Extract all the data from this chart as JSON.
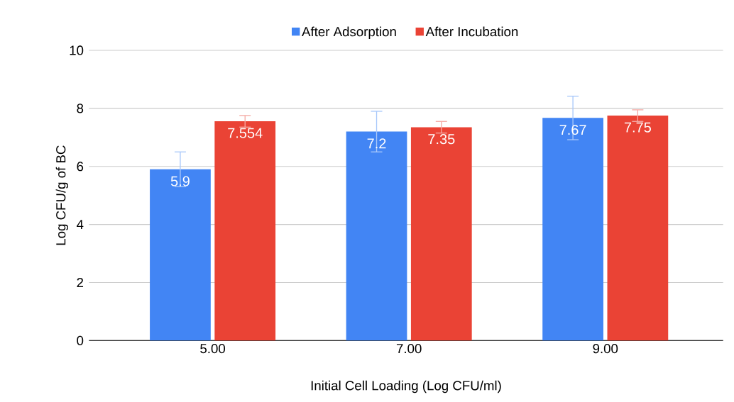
{
  "chart_data": {
    "type": "bar",
    "xlabel": "Initial Cell Loading (Log CFU/ml)",
    "ylabel": "Log CFU/g of BC",
    "categories": [
      "5.00",
      "7.00",
      "9.00"
    ],
    "series": [
      {
        "name": "After Adsorption",
        "color": "#4285f4",
        "values": [
          5.9,
          7.2,
          7.67
        ],
        "errors": [
          0.6,
          0.7,
          0.75
        ]
      },
      {
        "name": "After Incubation",
        "color": "#ea4335",
        "values": [
          7.554,
          7.35,
          7.75
        ],
        "errors": [
          0.2,
          0.2,
          0.2
        ]
      }
    ],
    "ylim": [
      0,
      10
    ],
    "yticks": [
      0,
      2,
      4,
      6,
      8,
      10
    ],
    "grid": "y",
    "legend": "top",
    "data_labels": true
  }
}
